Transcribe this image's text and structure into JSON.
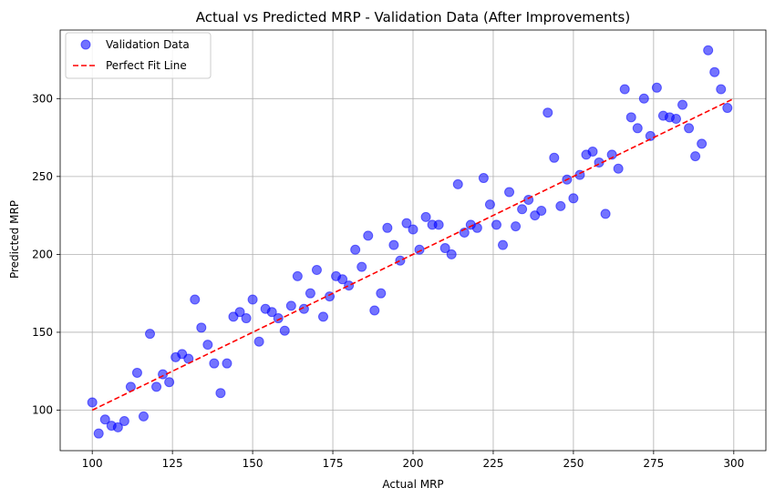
{
  "chart_data": {
    "type": "scatter",
    "title": "Actual vs Predicted MRP - Validation Data (After Improvements)",
    "xlabel": "Actual MRP",
    "ylabel": "Predicted MRP",
    "xlim": [
      90,
      310
    ],
    "ylim": [
      74,
      344
    ],
    "xticks": [
      100,
      125,
      150,
      175,
      200,
      225,
      250,
      275,
      300
    ],
    "yticks": [
      100,
      150,
      200,
      250,
      300
    ],
    "grid": true,
    "legend_position": "top-left",
    "series": [
      {
        "name": "Validation Data",
        "kind": "scatter",
        "color": "#0000ff",
        "opacity": 0.55,
        "points": [
          [
            100,
            105
          ],
          [
            102,
            85
          ],
          [
            104,
            94
          ],
          [
            106,
            90
          ],
          [
            108,
            89
          ],
          [
            110,
            93
          ],
          [
            112,
            115
          ],
          [
            114,
            124
          ],
          [
            116,
            96
          ],
          [
            118,
            149
          ],
          [
            120,
            115
          ],
          [
            122,
            123
          ],
          [
            124,
            118
          ],
          [
            126,
            134
          ],
          [
            128,
            136
          ],
          [
            130,
            133
          ],
          [
            132,
            171
          ],
          [
            134,
            153
          ],
          [
            136,
            142
          ],
          [
            138,
            130
          ],
          [
            140,
            111
          ],
          [
            142,
            130
          ],
          [
            144,
            160
          ],
          [
            146,
            163
          ],
          [
            148,
            159
          ],
          [
            150,
            171
          ],
          [
            152,
            144
          ],
          [
            154,
            165
          ],
          [
            156,
            163
          ],
          [
            158,
            159
          ],
          [
            160,
            151
          ],
          [
            162,
            167
          ],
          [
            164,
            186
          ],
          [
            166,
            165
          ],
          [
            168,
            175
          ],
          [
            170,
            190
          ],
          [
            172,
            160
          ],
          [
            174,
            173
          ],
          [
            176,
            186
          ],
          [
            178,
            184
          ],
          [
            180,
            180
          ],
          [
            182,
            203
          ],
          [
            184,
            192
          ],
          [
            186,
            212
          ],
          [
            188,
            164
          ],
          [
            190,
            175
          ],
          [
            192,
            217
          ],
          [
            194,
            206
          ],
          [
            196,
            196
          ],
          [
            198,
            220
          ],
          [
            200,
            216
          ],
          [
            202,
            203
          ],
          [
            204,
            224
          ],
          [
            206,
            219
          ],
          [
            208,
            219
          ],
          [
            210,
            204
          ],
          [
            212,
            200
          ],
          [
            214,
            245
          ],
          [
            216,
            214
          ],
          [
            218,
            219
          ],
          [
            220,
            217
          ],
          [
            222,
            249
          ],
          [
            224,
            232
          ],
          [
            226,
            219
          ],
          [
            228,
            206
          ],
          [
            230,
            240
          ],
          [
            232,
            218
          ],
          [
            234,
            229
          ],
          [
            236,
            235
          ],
          [
            238,
            225
          ],
          [
            240,
            228
          ],
          [
            242,
            291
          ],
          [
            244,
            262
          ],
          [
            246,
            231
          ],
          [
            248,
            248
          ],
          [
            250,
            236
          ],
          [
            252,
            251
          ],
          [
            254,
            264
          ],
          [
            256,
            266
          ],
          [
            258,
            259
          ],
          [
            260,
            226
          ],
          [
            262,
            264
          ],
          [
            264,
            255
          ],
          [
            266,
            306
          ],
          [
            268,
            288
          ],
          [
            270,
            281
          ],
          [
            272,
            300
          ],
          [
            274,
            276
          ],
          [
            276,
            307
          ],
          [
            278,
            289
          ],
          [
            280,
            288
          ],
          [
            282,
            287
          ],
          [
            284,
            296
          ],
          [
            286,
            281
          ],
          [
            288,
            263
          ],
          [
            290,
            271
          ],
          [
            292,
            331
          ],
          [
            294,
            317
          ],
          [
            296,
            306
          ],
          [
            298,
            294
          ]
        ]
      },
      {
        "name": "Perfect Fit Line",
        "kind": "line",
        "color": "#ff0000",
        "dash": "dashed",
        "x": [
          100,
          300
        ],
        "y": [
          100,
          300
        ]
      }
    ]
  }
}
